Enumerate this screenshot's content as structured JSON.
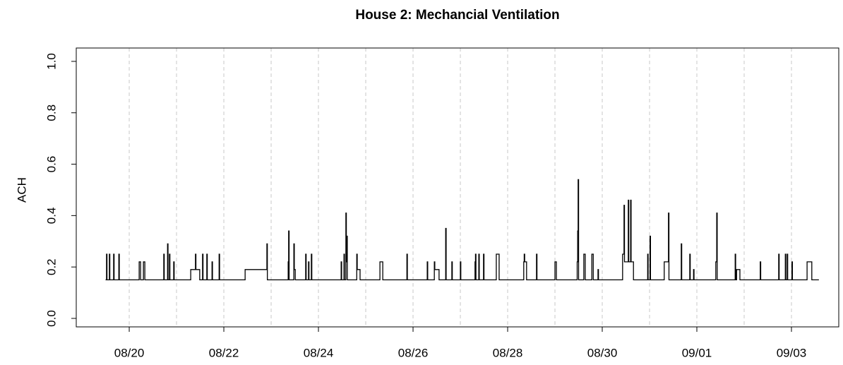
{
  "chart_data": {
    "type": "step",
    "title": "House 2: Mechancial Ventilation",
    "y_label": "ACH",
    "color": "#000000",
    "x": [
      19.5,
      19.52,
      19.53,
      19.58,
      19.59,
      19.67,
      19.68,
      19.78,
      19.79,
      20.21,
      20.24,
      20.3,
      20.33,
      20.73,
      20.74,
      20.81,
      20.82,
      20.85,
      20.86,
      20.94,
      20.95,
      21.3,
      21.4,
      21.41,
      21.49,
      21.55,
      21.56,
      21.64,
      21.65,
      21.75,
      21.76,
      21.9,
      21.91,
      22.45,
      22.91,
      22.92,
      23.36,
      23.37,
      23.38,
      23.48,
      23.49,
      23.51,
      23.73,
      23.74,
      23.79,
      23.8,
      23.85,
      23.86,
      24.48,
      24.49,
      24.54,
      24.55,
      24.58,
      24.59,
      24.6,
      24.61,
      24.81,
      24.82,
      24.88,
      25.3,
      25.36,
      25.87,
      25.88,
      26.3,
      26.31,
      26.45,
      26.46,
      26.55,
      26.69,
      26.7,
      26.82,
      26.83,
      27,
      27.01,
      27.31,
      27.32,
      27.33,
      27.39,
      27.4,
      27.49,
      27.5,
      27.76,
      27.82,
      28.34,
      28.35,
      28.36,
      28.4,
      28.61,
      28.62,
      29,
      29.03,
      29.47,
      29.48,
      29.49,
      29.5,
      29.61,
      29.64,
      29.78,
      29.81,
      29.91,
      29.92,
      30.43,
      30.46,
      30.47,
      30.55,
      30.56,
      30.6,
      30.61,
      30.66,
      30.96,
      30.97,
      31.01,
      31.02,
      31.31,
      31.4,
      31.41,
      31.67,
      31.68,
      31.85,
      31.86,
      31.93,
      31.94,
      32.4,
      32.42,
      32.43,
      32.81,
      32.82,
      32.84,
      32.91,
      33.34,
      33.35,
      33.73,
      33.74,
      33.87,
      33.88,
      33.91,
      33.92,
      34.01,
      34.02,
      34.33,
      34.43,
      34.58
    ],
    "values": [
      0.15,
      0.25,
      0.15,
      0.25,
      0.15,
      0.25,
      0.15,
      0.25,
      0.15,
      0.22,
      0.15,
      0.22,
      0.15,
      0.25,
      0.15,
      0.29,
      0.15,
      0.25,
      0.15,
      0.22,
      0.15,
      0.19,
      0.25,
      0.19,
      0.15,
      0.25,
      0.15,
      0.25,
      0.15,
      0.22,
      0.15,
      0.25,
      0.15,
      0.19,
      0.29,
      0.15,
      0.22,
      0.34,
      0.15,
      0.29,
      0.19,
      0.15,
      0.25,
      0.15,
      0.22,
      0.15,
      0.25,
      0.15,
      0.22,
      0.15,
      0.25,
      0.15,
      0.41,
      0.22,
      0.32,
      0.15,
      0.25,
      0.19,
      0.15,
      0.22,
      0.15,
      0.25,
      0.15,
      0.22,
      0.15,
      0.22,
      0.19,
      0.15,
      0.35,
      0.15,
      0.22,
      0.15,
      0.22,
      0.15,
      0.22,
      0.25,
      0.15,
      0.25,
      0.15,
      0.25,
      0.15,
      0.25,
      0.15,
      0.22,
      0.25,
      0.22,
      0.15,
      0.25,
      0.15,
      0.22,
      0.15,
      0.22,
      0.34,
      0.54,
      0.15,
      0.25,
      0.15,
      0.25,
      0.15,
      0.19,
      0.15,
      0.25,
      0.44,
      0.22,
      0.46,
      0.22,
      0.46,
      0.22,
      0.15,
      0.25,
      0.15,
      0.32,
      0.15,
      0.22,
      0.41,
      0.15,
      0.29,
      0.15,
      0.25,
      0.15,
      0.19,
      0.15,
      0.22,
      0.41,
      0.15,
      0.25,
      0.15,
      0.19,
      0.15,
      0.22,
      0.15,
      0.25,
      0.15,
      0.25,
      0.15,
      0.25,
      0.15,
      0.22,
      0.15,
      0.22,
      0.15,
      0.15
    ],
    "xlim": [
      18.88,
      35.0
    ],
    "xticks": [
      {
        "value": 20,
        "label": "08/20"
      },
      {
        "value": 22,
        "label": "08/22"
      },
      {
        "value": 24,
        "label": "08/24"
      },
      {
        "value": 26,
        "label": "08/26"
      },
      {
        "value": 28,
        "label": "08/28"
      },
      {
        "value": 30,
        "label": "08/30"
      },
      {
        "value": 32,
        "label": "09/01"
      },
      {
        "value": 34,
        "label": "09/03"
      }
    ],
    "xgrid": [
      20,
      21,
      22,
      23,
      24,
      25,
      26,
      27,
      28,
      29,
      30,
      31,
      32,
      33,
      34
    ],
    "ylim": [
      -0.033,
      1.052
    ],
    "yticks": [
      {
        "value": 0,
        "label": "0.0"
      },
      {
        "value": 0.2,
        "label": "0.2"
      },
      {
        "value": 0.4,
        "label": "0.4"
      },
      {
        "value": 0.6,
        "label": "0.6"
      },
      {
        "value": 0.8,
        "label": "0.8"
      },
      {
        "value": 1,
        "label": "1.0"
      }
    ],
    "grid": true
  }
}
